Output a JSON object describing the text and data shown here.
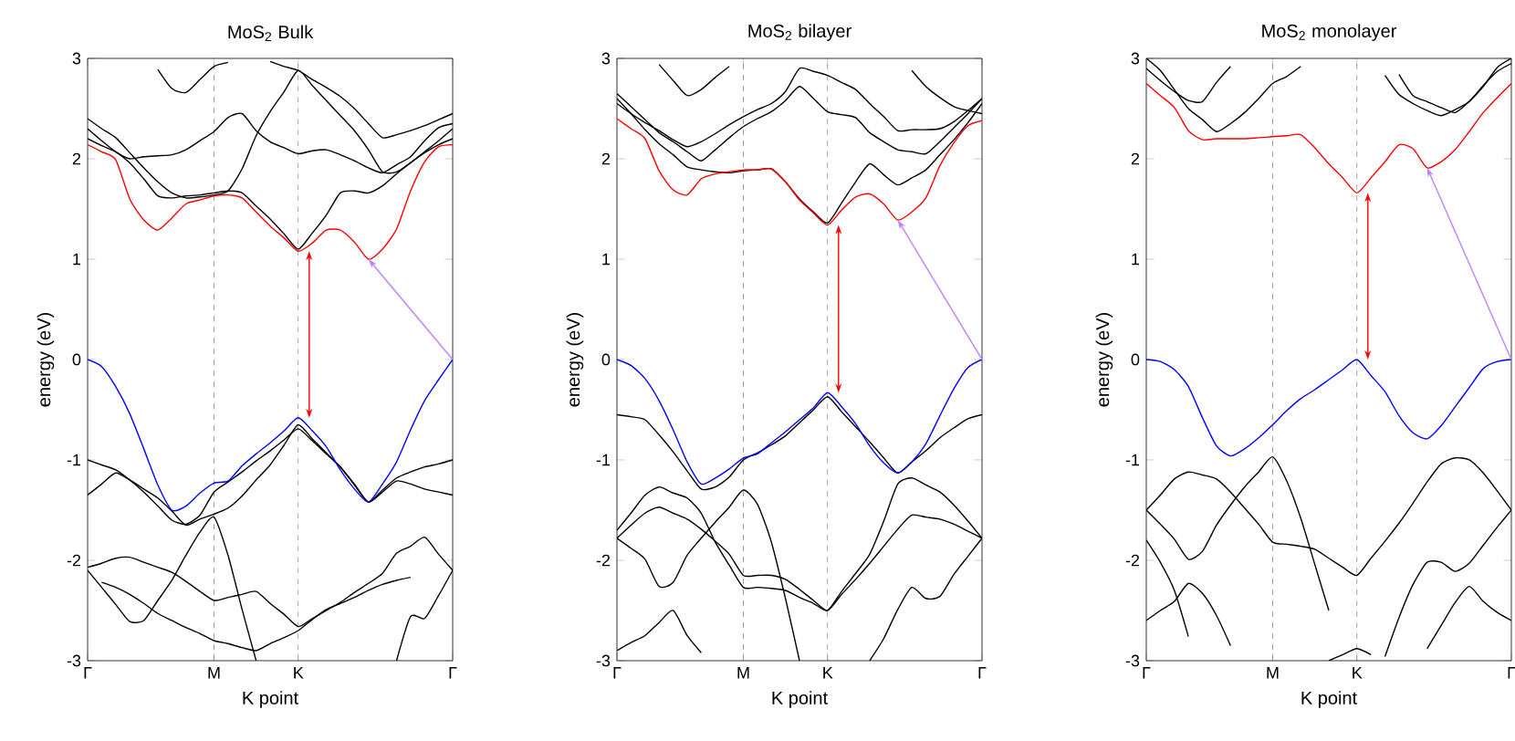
{
  "chart_data": [
    {
      "type": "line",
      "title": "MoS$_{2}$ Bulk",
      "xlabel": "K point",
      "ylabel": "energy (eV)",
      "ylim": [
        -3,
        3
      ],
      "categories": [
        "Γ",
        null,
        null,
        null,
        null,
        null,
        null,
        null,
        null,
        "M",
        null,
        null,
        null,
        null,
        null,
        "K",
        null,
        null,
        null,
        null,
        null,
        null,
        null,
        null,
        null,
        null,
        "Γ"
      ],
      "yticks": [
        -3,
        -2,
        -1,
        0,
        1,
        2,
        3
      ],
      "ref_lines": [
        {
          "axis": "x",
          "value": "M",
          "color": "#808080",
          "line_style": "dashed"
        },
        {
          "axis": "x",
          "value": "K",
          "color": "#808080",
          "line_style": "dashed"
        }
      ],
      "series": [
        {
          "color": "#000000",
          "values": [
            -1.0,
            -1.05,
            -1.1,
            -1.2,
            -1.32,
            -1.46,
            -1.6,
            -1.64,
            -1.55,
            -1.32,
            -1.22,
            -1.12,
            -1.01,
            -0.91,
            -0.8,
            -0.69,
            -0.81,
            -0.94,
            -1.07,
            -1.25,
            -1.42,
            -1.3,
            -1.18,
            -1.12,
            -1.07,
            -1.04,
            -1.0
          ]
        },
        {
          "color": "#000000",
          "values": [
            -1.35,
            -1.24,
            -1.13,
            -1.2,
            -1.29,
            -1.38,
            -1.51,
            -1.65,
            -1.59,
            -1.54,
            -1.48,
            -1.36,
            -1.2,
            -1.05,
            -0.85,
            -0.65,
            -0.79,
            -0.93,
            -1.07,
            -1.24,
            -1.42,
            -1.32,
            -1.21,
            -1.24,
            -1.29,
            -1.32,
            -1.35
          ]
        },
        {
          "color": "#000000",
          "values": [
            -2.07,
            -2.03,
            -1.98,
            -1.97,
            -2.02,
            -2.07,
            -2.12,
            -2.21,
            -2.31,
            -2.4,
            -2.37,
            -2.34,
            -2.31,
            -2.43,
            -2.54,
            -2.66,
            -2.58,
            -2.5,
            -2.42,
            -2.32,
            -2.23,
            -2.13,
            -1.93,
            -1.86,
            -1.77,
            -1.94,
            -2.1
          ]
        },
        {
          "color": "#000000",
          "values": [
            -2.1,
            -2.27,
            -2.44,
            -2.61,
            -2.6,
            -2.4,
            -2.2,
            -1.95,
            -1.72,
            -1.57,
            -1.95,
            -2.49,
            -3.0,
            null,
            null,
            null,
            null,
            null,
            null,
            null,
            null,
            null,
            null,
            null,
            null,
            null,
            null
          ]
        },
        {
          "color": "#000000",
          "values": [
            null,
            -2.22,
            -2.27,
            -2.34,
            -2.43,
            -2.53,
            -2.6,
            -2.67,
            -2.73,
            -2.8,
            -2.83,
            -2.87,
            -2.9,
            -2.83,
            -2.77,
            -2.7,
            -2.59,
            -2.49,
            -2.43,
            -2.37,
            -2.3,
            -2.24,
            -2.2,
            -2.17,
            null,
            null,
            null
          ]
        },
        {
          "color": "#000000",
          "values": [
            null,
            null,
            null,
            null,
            null,
            null,
            null,
            null,
            null,
            null,
            null,
            null,
            null,
            null,
            null,
            null,
            null,
            null,
            null,
            null,
            null,
            null,
            -3.0,
            -2.56,
            -2.58,
            -2.35,
            -2.1
          ]
        },
        {
          "color": "#000000",
          "values": [
            2.2,
            2.13,
            2.07,
            1.96,
            1.8,
            1.63,
            1.61,
            1.63,
            1.64,
            1.66,
            1.68,
            1.66,
            1.53,
            1.4,
            1.25,
            1.1,
            1.26,
            1.44,
            1.66,
            1.68,
            1.66,
            1.73,
            1.85,
            1.96,
            2.06,
            2.14,
            2.2
          ]
        },
        {
          "color": "#000000",
          "values": [
            2.3,
            2.18,
            2.07,
            2.0,
            2.02,
            2.03,
            2.04,
            2.09,
            2.18,
            2.27,
            2.41,
            2.45,
            2.28,
            2.17,
            2.11,
            2.05,
            2.08,
            2.09,
            2.04,
            1.98,
            1.91,
            1.86,
            1.94,
            2.02,
            2.18,
            2.31,
            2.35
          ]
        },
        {
          "color": "#000000",
          "values": [
            2.4,
            2.3,
            2.21,
            2.06,
            1.91,
            1.77,
            1.66,
            1.61,
            1.62,
            1.64,
            1.68,
            1.9,
            2.23,
            2.47,
            2.67,
            2.88,
            2.73,
            2.58,
            2.43,
            2.28,
            2.09,
            1.87,
            1.87,
            1.96,
            2.07,
            2.18,
            2.3
          ]
        },
        {
          "color": "#000000",
          "values": [
            null,
            null,
            null,
            null,
            null,
            2.89,
            2.7,
            2.66,
            2.79,
            2.92,
            2.96,
            null,
            null,
            null,
            null,
            null,
            null,
            null,
            null,
            null,
            null,
            null,
            null,
            null,
            null,
            null,
            null
          ]
        },
        {
          "color": "#000000",
          "values": [
            null,
            null,
            null,
            null,
            null,
            null,
            null,
            null,
            null,
            null,
            null,
            null,
            null,
            2.97,
            2.92,
            2.88,
            2.79,
            2.71,
            2.62,
            2.5,
            2.35,
            2.21,
            2.24,
            2.28,
            2.33,
            2.39,
            2.45
          ]
        },
        {
          "color": "#ff0000",
          "values": [
            2.14,
            2.07,
            1.99,
            1.6,
            1.39,
            1.29,
            1.41,
            1.55,
            1.59,
            1.63,
            1.64,
            1.61,
            1.47,
            1.33,
            1.21,
            1.08,
            1.16,
            1.29,
            1.29,
            1.17,
            1.0,
            1.1,
            1.3,
            1.68,
            1.97,
            2.12,
            2.14
          ]
        },
        {
          "color": "#0000ff",
          "values": [
            0,
            -0.07,
            -0.27,
            -0.54,
            -0.89,
            -1.25,
            -1.5,
            -1.46,
            -1.33,
            -1.23,
            -1.21,
            -1.06,
            -0.94,
            -0.83,
            -0.71,
            -0.58,
            -0.71,
            -0.87,
            -1.1,
            -1.29,
            -1.42,
            -1.24,
            -1.02,
            -0.7,
            -0.41,
            -0.2,
            0
          ]
        }
      ]
    },
    {
      "type": "line",
      "title": "MoS$_{2}$ bilayer",
      "xlabel": "K point",
      "ylabel": "energy (eV)",
      "ylim": [
        -3,
        3
      ],
      "categories": [
        "Γ",
        null,
        null,
        null,
        null,
        null,
        null,
        null,
        null,
        "M",
        null,
        null,
        null,
        null,
        null,
        "K",
        null,
        null,
        null,
        null,
        null,
        null,
        null,
        null,
        null,
        null,
        "Γ"
      ],
      "yticks": [
        -3,
        -2,
        -1,
        0,
        1,
        2,
        3
      ],
      "ref_lines": [
        {
          "axis": "x",
          "value": "M",
          "color": "#808080",
          "line_style": "dashed"
        },
        {
          "axis": "x",
          "value": "K",
          "color": "#808080",
          "line_style": "dashed"
        }
      ],
      "series": [
        {
          "color": "#000000",
          "values": [
            -0.55,
            -0.57,
            -0.6,
            -0.75,
            -0.92,
            -1.11,
            -1.29,
            -1.27,
            -1.17,
            -1.0,
            -0.93,
            -0.85,
            -0.76,
            -0.63,
            -0.5,
            -0.37,
            -0.52,
            -0.67,
            -0.82,
            -0.98,
            -1.13,
            -1.02,
            -0.91,
            -0.78,
            -0.68,
            -0.59,
            -0.55
          ]
        },
        {
          "color": "#000000",
          "values": [
            -1.78,
            -1.65,
            -1.53,
            -1.47,
            -1.53,
            -1.59,
            -1.69,
            -1.81,
            -1.94,
            -2.15,
            -2.15,
            -2.15,
            -2.19,
            -2.29,
            -2.4,
            -2.5,
            -2.34,
            -2.19,
            -2.03,
            -1.86,
            -1.69,
            -1.55,
            -1.57,
            -1.59,
            -1.64,
            -1.71,
            -1.78
          ]
        },
        {
          "color": "#000000",
          "values": [
            -1.78,
            -1.88,
            -1.99,
            -2.26,
            -2.22,
            -1.95,
            -1.78,
            -1.62,
            -1.47,
            -1.3,
            -1.44,
            -1.82,
            -2.38,
            -3.0,
            null,
            null,
            null,
            null,
            null,
            null,
            null,
            null,
            null,
            null,
            null,
            null,
            null
          ]
        },
        {
          "color": "#000000",
          "values": [
            -1.7,
            -1.53,
            -1.35,
            -1.27,
            -1.33,
            -1.38,
            -1.53,
            -1.82,
            -2.05,
            -2.27,
            -2.27,
            -2.28,
            -2.3,
            -2.37,
            -2.43,
            -2.5,
            -2.31,
            -2.13,
            -1.94,
            -1.61,
            -1.24,
            -1.18,
            -1.25,
            -1.32,
            -1.45,
            -1.61,
            -1.78
          ]
        },
        {
          "color": "#000000",
          "values": [
            -2.9,
            -2.82,
            -2.75,
            -2.62,
            -2.5,
            -2.75,
            -2.92,
            null,
            null,
            null,
            null,
            null,
            null,
            null,
            null,
            null,
            null,
            null,
            null,
            null,
            null,
            null,
            null,
            null,
            null,
            null,
            null
          ]
        },
        {
          "color": "#000000",
          "values": [
            null,
            null,
            null,
            null,
            null,
            null,
            null,
            null,
            null,
            null,
            null,
            null,
            null,
            null,
            null,
            null,
            null,
            null,
            -3.0,
            -2.78,
            -2.49,
            -2.27,
            -2.38,
            -2.36,
            -2.14,
            -1.96,
            -1.78
          ]
        },
        {
          "color": "#000000",
          "values": [
            2.6,
            2.45,
            2.29,
            2.15,
            2.04,
            1.92,
            1.89,
            1.87,
            1.86,
            1.88,
            1.89,
            1.9,
            1.77,
            1.6,
            1.47,
            1.36,
            1.56,
            1.77,
            1.95,
            1.84,
            1.74,
            1.81,
            1.89,
            2.04,
            2.19,
            2.36,
            2.55
          ]
        },
        {
          "color": "#000000",
          "values": [
            2.65,
            2.52,
            2.39,
            2.26,
            2.17,
            2.07,
            1.98,
            2.09,
            2.21,
            2.32,
            2.4,
            2.47,
            2.58,
            2.72,
            2.6,
            2.47,
            2.44,
            2.41,
            2.26,
            2.17,
            2.09,
            2.07,
            2.05,
            2.17,
            2.31,
            2.45,
            2.6
          ]
        },
        {
          "color": "#000000",
          "values": [
            2.55,
            2.45,
            2.36,
            2.28,
            2.19,
            2.12,
            2.17,
            2.25,
            2.34,
            2.42,
            2.49,
            2.55,
            2.67,
            2.9,
            2.87,
            2.83,
            2.76,
            2.69,
            2.55,
            2.42,
            2.28,
            2.29,
            2.29,
            2.3,
            2.37,
            2.48,
            2.6
          ]
        },
        {
          "color": "#000000",
          "values": [
            null,
            null,
            null,
            2.94,
            2.78,
            2.63,
            2.69,
            2.81,
            2.92,
            null,
            null,
            null,
            null,
            null,
            null,
            null,
            null,
            null,
            null,
            null,
            null,
            null,
            null,
            null,
            null,
            null,
            null
          ]
        },
        {
          "color": "#000000",
          "values": [
            null,
            null,
            null,
            null,
            null,
            null,
            null,
            null,
            null,
            null,
            null,
            null,
            null,
            null,
            null,
            null,
            null,
            null,
            null,
            null,
            null,
            2.88,
            2.72,
            2.61,
            2.52,
            2.48,
            2.45
          ]
        },
        {
          "color": "#ff0000",
          "values": [
            2.4,
            2.3,
            2.2,
            1.88,
            1.69,
            1.64,
            1.8,
            1.85,
            1.87,
            1.89,
            1.89,
            1.9,
            1.77,
            1.59,
            1.46,
            1.34,
            1.49,
            1.62,
            1.65,
            1.55,
            1.39,
            1.47,
            1.61,
            1.93,
            2.16,
            2.33,
            2.38
          ]
        },
        {
          "color": "#0000ff",
          "values": [
            0,
            -0.06,
            -0.19,
            -0.41,
            -0.7,
            -1.02,
            -1.24,
            -1.18,
            -1.09,
            -0.98,
            -0.94,
            -0.83,
            -0.72,
            -0.6,
            -0.48,
            -0.33,
            -0.47,
            -0.64,
            -0.86,
            -1.03,
            -1.13,
            -1.02,
            -0.84,
            -0.56,
            -0.29,
            -0.08,
            0
          ]
        }
      ]
    },
    {
      "type": "line",
      "title": "MoS$_{2}$ monolayer",
      "xlabel": "K point",
      "ylabel": "energy (eV)",
      "ylim": [
        -3,
        3
      ],
      "categories": [
        "Γ",
        null,
        null,
        null,
        null,
        null,
        null,
        null,
        null,
        "M",
        null,
        null,
        null,
        null,
        null,
        "K",
        null,
        null,
        null,
        null,
        null,
        null,
        null,
        null,
        null,
        null,
        "Γ"
      ],
      "yticks": [
        -3,
        -2,
        -1,
        0,
        1,
        2,
        3
      ],
      "ref_lines": [
        {
          "axis": "x",
          "value": "M",
          "color": "#808080",
          "line_style": "dashed"
        },
        {
          "axis": "x",
          "value": "K",
          "color": "#808080",
          "line_style": "dashed"
        }
      ],
      "series": [
        {
          "color": "#000000",
          "values": [
            -1.5,
            -1.35,
            -1.19,
            -1.12,
            -1.15,
            -1.19,
            -1.32,
            -1.48,
            -1.64,
            -1.82,
            -1.84,
            -1.86,
            -1.89,
            -1.98,
            -2.07,
            -2.15,
            -1.98,
            -1.81,
            -1.63,
            -1.43,
            -1.22,
            -1.04,
            -0.98,
            -1.0,
            -1.13,
            -1.31,
            -1.5
          ]
        },
        {
          "color": "#000000",
          "values": [
            -1.5,
            -1.64,
            -1.79,
            -1.99,
            -1.91,
            -1.65,
            -1.45,
            -1.27,
            -1.12,
            -0.97,
            -1.21,
            -1.58,
            -2.04,
            -2.5,
            null,
            null,
            null,
            null,
            null,
            null,
            null,
            null,
            null,
            null,
            null,
            null,
            null
          ]
        },
        {
          "color": "#000000",
          "values": [
            -1.8,
            -2.02,
            -2.3,
            -2.76,
            null,
            null,
            null,
            null,
            null,
            null,
            null,
            null,
            null,
            null,
            null,
            null,
            null,
            null,
            null,
            null,
            null,
            null,
            null,
            null,
            null,
            null,
            null
          ]
        },
        {
          "color": "#000000",
          "values": [
            -2.6,
            -2.5,
            -2.41,
            -2.23,
            -2.33,
            -2.55,
            -2.85,
            null,
            null,
            null,
            null,
            null,
            null,
            null,
            null,
            null,
            null,
            null,
            null,
            null,
            null,
            null,
            null,
            null,
            null,
            null,
            null
          ]
        },
        {
          "color": "#000000",
          "values": [
            null,
            null,
            null,
            null,
            null,
            null,
            null,
            null,
            null,
            null,
            null,
            null,
            null,
            -3.0,
            -2.94,
            -2.88,
            -2.94,
            null,
            null,
            null,
            null,
            null,
            null,
            null,
            null,
            null,
            null
          ]
        },
        {
          "color": "#000000",
          "values": [
            null,
            null,
            null,
            null,
            null,
            null,
            null,
            null,
            null,
            null,
            null,
            null,
            null,
            null,
            null,
            null,
            null,
            -2.96,
            -2.57,
            -2.24,
            -2.02,
            -2.02,
            -2.11,
            -2.03,
            -1.85,
            -1.67,
            -1.5
          ]
        },
        {
          "color": "#000000",
          "values": [
            null,
            null,
            null,
            null,
            null,
            null,
            null,
            null,
            null,
            null,
            null,
            null,
            null,
            null,
            null,
            null,
            null,
            null,
            null,
            null,
            -2.88,
            -2.65,
            -2.42,
            -2.26,
            -2.41,
            -2.52,
            -2.6
          ]
        },
        {
          "color": "#000000",
          "values": [
            3.0,
            2.88,
            2.69,
            2.5,
            2.39,
            2.27,
            2.35,
            2.46,
            2.6,
            2.75,
            2.82,
            2.92,
            null,
            null,
            null,
            null,
            null,
            null,
            null,
            null,
            null,
            null,
            null,
            null,
            null,
            null,
            null
          ]
        },
        {
          "color": "#000000",
          "values": [
            2.9,
            2.78,
            2.67,
            2.58,
            2.57,
            2.76,
            2.92,
            null,
            null,
            null,
            null,
            null,
            null,
            null,
            null,
            null,
            null,
            null,
            null,
            null,
            null,
            null,
            null,
            null,
            null,
            null,
            null
          ]
        },
        {
          "color": "#000000",
          "values": [
            null,
            null,
            null,
            null,
            null,
            null,
            null,
            null,
            null,
            null,
            null,
            null,
            null,
            null,
            null,
            null,
            null,
            null,
            2.84,
            2.63,
            2.57,
            2.51,
            2.46,
            2.57,
            2.72,
            2.91,
            3.0
          ]
        },
        {
          "color": "#000000",
          "values": [
            null,
            null,
            null,
            null,
            null,
            null,
            null,
            null,
            null,
            null,
            null,
            null,
            null,
            null,
            null,
            null,
            null,
            2.83,
            2.64,
            2.55,
            2.48,
            2.43,
            2.49,
            2.57,
            2.73,
            2.87,
            2.95
          ]
        },
        {
          "color": "#ff0000",
          "values": [
            2.75,
            2.63,
            2.51,
            2.28,
            2.19,
            2.2,
            2.2,
            2.2,
            2.21,
            2.22,
            2.23,
            2.24,
            2.11,
            1.95,
            1.81,
            1.66,
            1.81,
            1.97,
            2.14,
            2.1,
            1.91,
            1.97,
            2.09,
            2.27,
            2.46,
            2.61,
            2.75
          ]
        },
        {
          "color": "#0000ff",
          "values": [
            0,
            -0.02,
            -0.1,
            -0.27,
            -0.58,
            -0.86,
            -0.96,
            -0.89,
            -0.78,
            -0.65,
            -0.51,
            -0.39,
            -0.3,
            -0.2,
            -0.1,
            0,
            -0.16,
            -0.32,
            -0.56,
            -0.73,
            -0.79,
            -0.66,
            -0.47,
            -0.28,
            -0.09,
            -0.02,
            0
          ]
        }
      ]
    }
  ]
}
